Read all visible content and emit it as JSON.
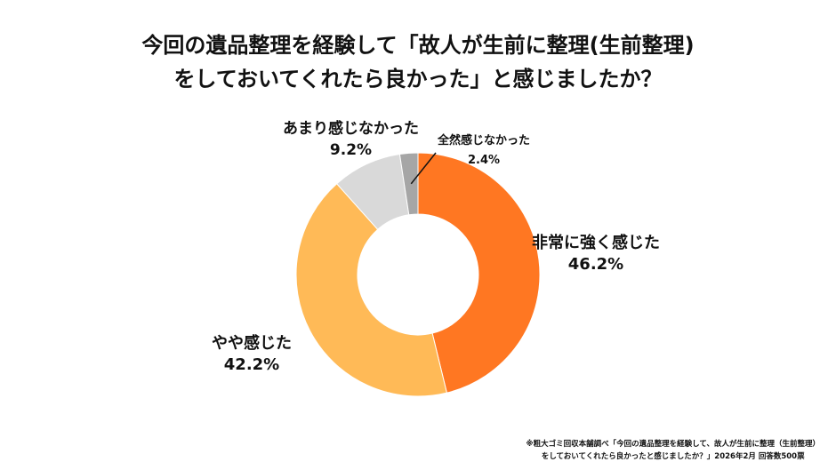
{
  "chart_data": {
    "type": "donut",
    "title_lines": [
      "今回の遺品整理を経験して「故人が生前に整理(生前整理)",
      "をしておいてくれたら良かった」と感じましたか？"
    ],
    "categories": [
      "非常に強く感じた",
      "やや感じた",
      "あまり感じなかった",
      "全然感じなかった"
    ],
    "values": [
      46.2,
      42.2,
      9.2,
      2.4
    ],
    "value_labels": [
      "46.2%",
      "42.2%",
      "9.2%",
      "2.4%"
    ],
    "colors": [
      "#FF7722",
      "#FFBA57",
      "#D9D9D9",
      "#A6A6A6"
    ],
    "unit": "%"
  },
  "footnote": [
    "※粗大ゴミ回収本舗調べ「今回の遺品整理を経験して、故人が生前に整理（生前整理）",
    "をしておいてくれたら良かったと感じましたか？」2026年2月 回答数500票"
  ]
}
